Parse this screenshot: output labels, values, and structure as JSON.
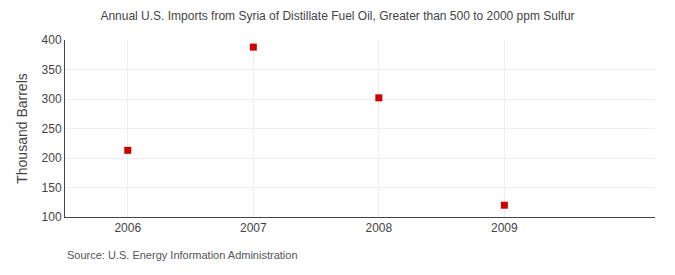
{
  "chart_data": {
    "type": "scatter",
    "title": "Annual U.S. Imports from Syria of Distillate Fuel Oil, Greater than 500 to 2000 ppm Sulfur",
    "ylabel": "Thousand Barrels",
    "x": [
      2006,
      2007,
      2008,
      2009
    ],
    "values": [
      213,
      388,
      302,
      120
    ],
    "color": "#cc0000",
    "marker": "square",
    "xlim": [
      2005.5,
      2010.2
    ],
    "ylim": [
      100,
      400
    ],
    "xticks": [
      2006,
      2007,
      2008,
      2009
    ],
    "yticks": [
      100,
      150,
      200,
      250,
      300,
      350,
      400
    ],
    "grid": true,
    "annotations": [
      "Source: U.S. Energy Information Administration"
    ]
  }
}
